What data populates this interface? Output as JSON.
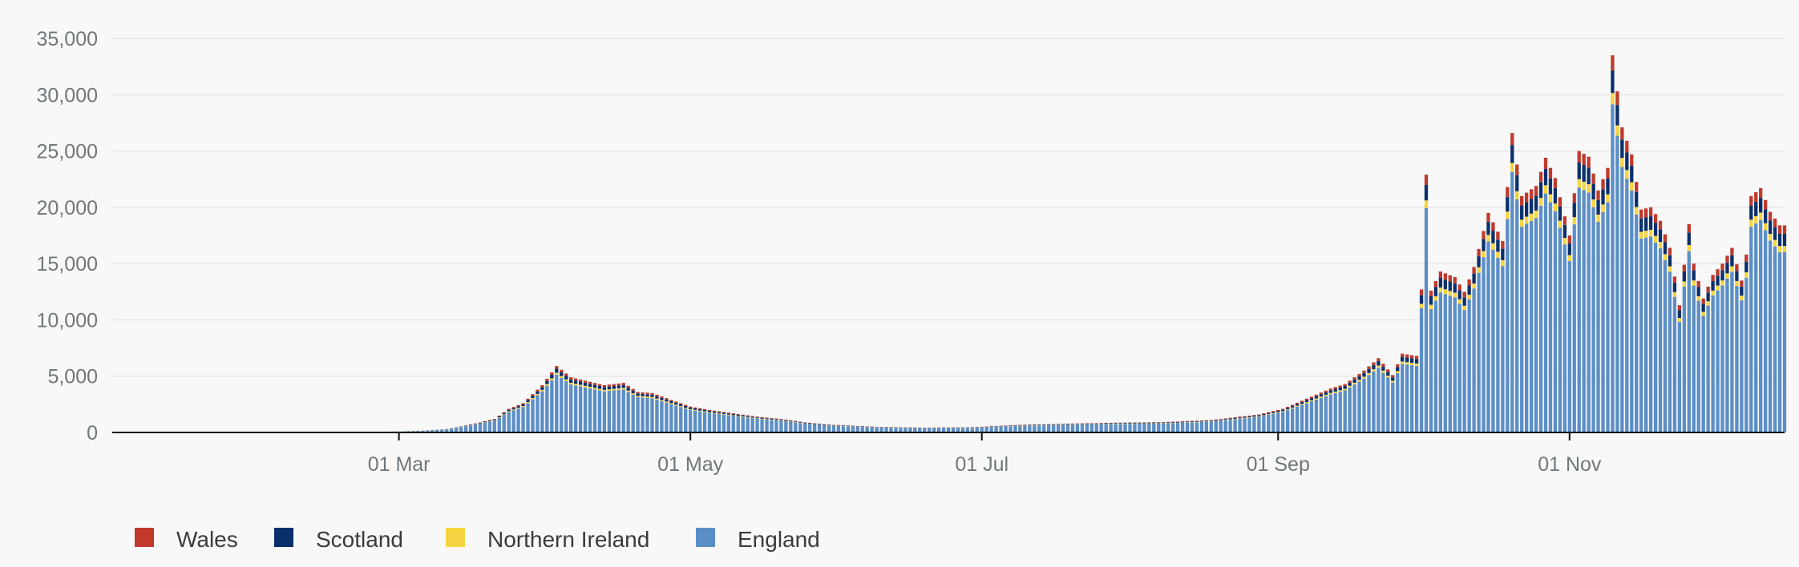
{
  "chart_data": {
    "type": "bar",
    "stacked": true,
    "y_ticks": [
      "0",
      "5,000",
      "10,000",
      "15,000",
      "20,000",
      "25,000",
      "30,000",
      "35,000"
    ],
    "ylim": [
      0,
      35000
    ],
    "x_ticks": [
      {
        "label": "01 Mar",
        "day": 60
      },
      {
        "label": "01 May",
        "day": 121
      },
      {
        "label": "01 Jul",
        "day": 182
      },
      {
        "label": "01 Sep",
        "day": 244
      },
      {
        "label": "01 Nov",
        "day": 305
      }
    ],
    "x_range": [
      "31 Dec",
      "15 Dec"
    ],
    "grid": true,
    "legend_position": "bottom-left",
    "series": [
      {
        "name": "Wales",
        "color": "#c0392b"
      },
      {
        "name": "Scotland",
        "color": "#0b2f6b"
      },
      {
        "name": "Northern Ireland",
        "color": "#f5d442"
      },
      {
        "name": "England",
        "color": "#5b8ec7"
      }
    ],
    "total_key_points": [
      [
        0,
        0
      ],
      [
        28,
        2
      ],
      [
        30,
        8
      ],
      [
        40,
        20
      ],
      [
        50,
        40
      ],
      [
        55,
        60
      ],
      [
        60,
        90
      ],
      [
        65,
        160
      ],
      [
        70,
        300
      ],
      [
        75,
        700
      ],
      [
        80,
        1200
      ],
      [
        83,
        2100
      ],
      [
        86,
        2600
      ],
      [
        90,
        4200
      ],
      [
        93,
        5900
      ],
      [
        96,
        4900
      ],
      [
        100,
        4500
      ],
      [
        103,
        4200
      ],
      [
        107,
        4400
      ],
      [
        110,
        3600
      ],
      [
        113,
        3500
      ],
      [
        117,
        2900
      ],
      [
        121,
        2300
      ],
      [
        125,
        2000
      ],
      [
        130,
        1700
      ],
      [
        135,
        1400
      ],
      [
        140,
        1200
      ],
      [
        145,
        900
      ],
      [
        150,
        700
      ],
      [
        155,
        600
      ],
      [
        160,
        500
      ],
      [
        170,
        430
      ],
      [
        180,
        470
      ],
      [
        190,
        680
      ],
      [
        200,
        780
      ],
      [
        210,
        870
      ],
      [
        220,
        920
      ],
      [
        230,
        1100
      ],
      [
        240,
        1600
      ],
      [
        245,
        2100
      ],
      [
        250,
        3000
      ],
      [
        255,
        3900
      ],
      [
        258,
        4300
      ],
      [
        262,
        5500
      ],
      [
        265,
        6600
      ],
      [
        268,
        5100
      ],
      [
        270,
        7000
      ],
      [
        273,
        6800
      ],
      [
        274,
        12700
      ],
      [
        275,
        22900
      ],
      [
        276,
        12600
      ],
      [
        278,
        14300
      ],
      [
        281,
        13800
      ],
      [
        283,
        12500
      ],
      [
        285,
        14700
      ],
      [
        288,
        19500
      ],
      [
        291,
        17000
      ],
      [
        293,
        26600
      ],
      [
        295,
        21000
      ],
      [
        298,
        21900
      ],
      [
        300,
        24400
      ],
      [
        302,
        22600
      ],
      [
        305,
        17500
      ],
      [
        307,
        25000
      ],
      [
        309,
        24500
      ],
      [
        311,
        21500
      ],
      [
        313,
        23500
      ],
      [
        314,
        33500
      ],
      [
        316,
        27100
      ],
      [
        318,
        24700
      ],
      [
        320,
        19800
      ],
      [
        322,
        20000
      ],
      [
        324,
        18800
      ],
      [
        326,
        16400
      ],
      [
        328,
        11300
      ],
      [
        330,
        18500
      ],
      [
        331,
        15000
      ],
      [
        333,
        11900
      ],
      [
        335,
        14000
      ],
      [
        337,
        15000
      ],
      [
        339,
        16400
      ],
      [
        341,
        13500
      ],
      [
        342,
        15800
      ],
      [
        343,
        21000
      ],
      [
        345,
        21700
      ],
      [
        347,
        19600
      ],
      [
        349,
        18400
      ]
    ],
    "shares": {
      "England": 0.87,
      "Northern Ireland": 0.03,
      "Scotland": 0.06,
      "Wales": 0.04
    }
  }
}
